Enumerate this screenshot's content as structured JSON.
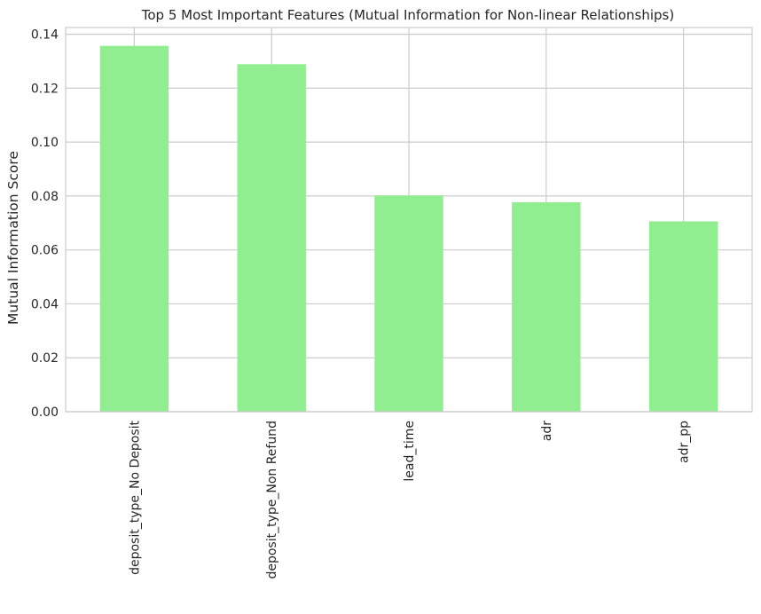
{
  "chart_data": {
    "type": "bar",
    "title": "Top 5 Most Important Features (Mutual Information for Non-linear Relationships)",
    "xlabel": "",
    "ylabel": "Mutual Information Score",
    "categories": [
      "deposit_type_No Deposit",
      "deposit_type_Non Refund",
      "lead_time",
      "adr",
      "adr_pp"
    ],
    "values": [
      0.1357,
      0.1289,
      0.0802,
      0.0777,
      0.0706
    ],
    "ylim": [
      0,
      0.1425
    ],
    "yticks": [
      "0.00",
      "0.02",
      "0.04",
      "0.06",
      "0.08",
      "0.10",
      "0.12",
      "0.14"
    ],
    "grid": true,
    "bar_color": "#90ee90",
    "grid_color": "#cccccc"
  }
}
